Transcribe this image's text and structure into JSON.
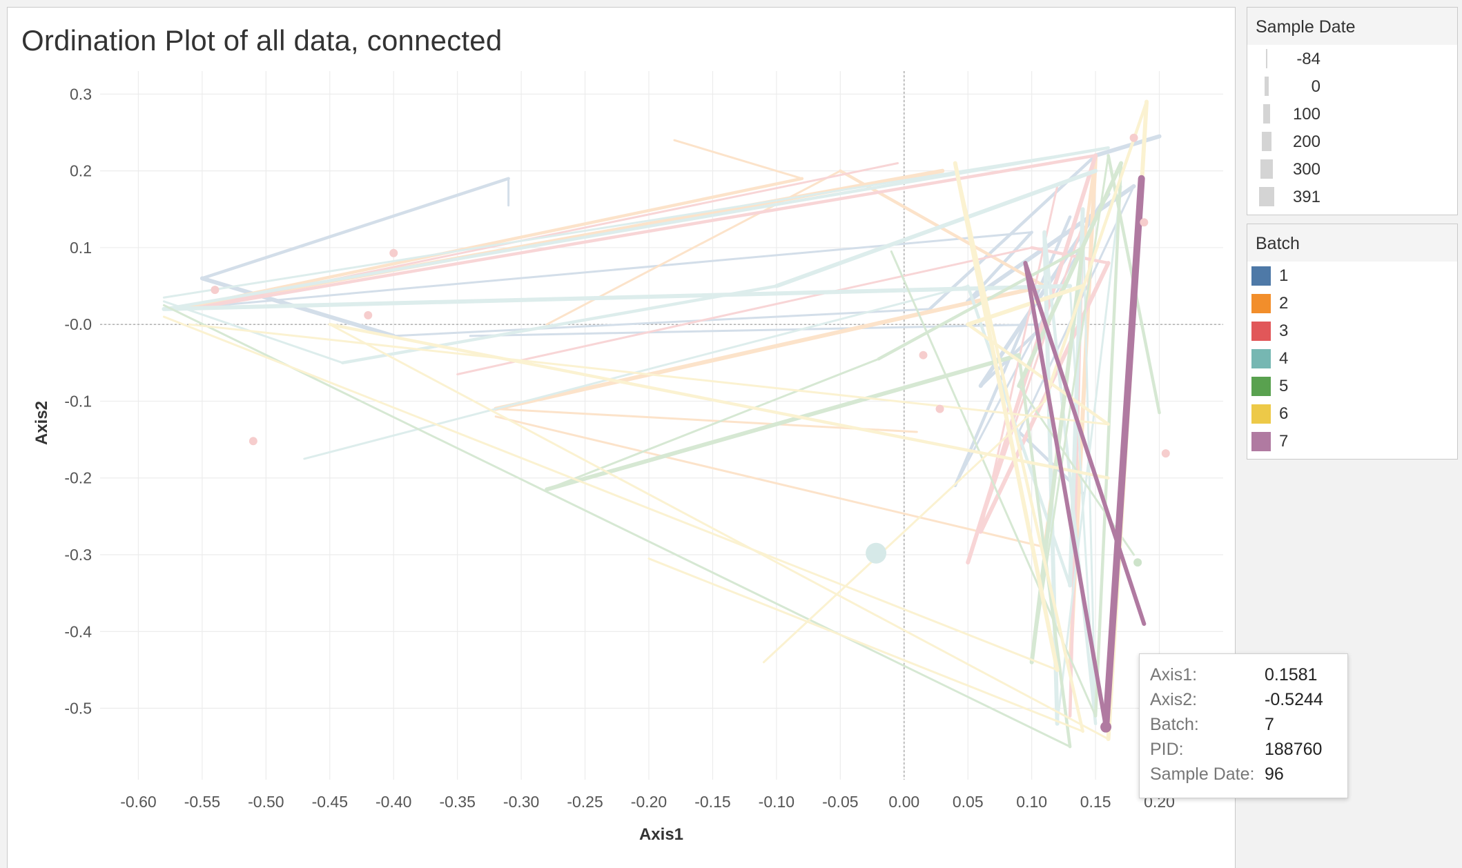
{
  "chart_data": {
    "type": "line",
    "title": "Ordination Plot of all data, connected",
    "xlabel": "Axis1",
    "ylabel": "Axis2",
    "xlim": [
      -0.63,
      0.25
    ],
    "ylim": [
      -0.593,
      0.33
    ],
    "x_ticks": [
      "-0.60",
      "-0.55",
      "-0.50",
      "-0.45",
      "-0.40",
      "-0.35",
      "-0.30",
      "-0.25",
      "-0.20",
      "-0.15",
      "-0.10",
      "-0.05",
      "0.00",
      "0.05",
      "0.10",
      "0.15",
      "0.20"
    ],
    "y_ticks": [
      "0.3",
      "0.2",
      "0.1",
      "-0.0",
      "-0.1",
      "-0.2",
      "-0.3",
      "-0.4",
      "-0.5"
    ],
    "grid": true,
    "reference_lines": {
      "x": 0,
      "y": 0
    },
    "legend": {
      "size_title": "Sample Date",
      "size_items": [
        "-84",
        "0",
        "100",
        "200",
        "300",
        "391"
      ],
      "color_title": "Batch",
      "color_items": [
        {
          "label": "1",
          "color": "#4e79a7"
        },
        {
          "label": "2",
          "color": "#f28e2b"
        },
        {
          "label": "3",
          "color": "#e15759"
        },
        {
          "label": "4",
          "color": "#76b7b2"
        },
        {
          "label": "5",
          "color": "#59a14f"
        },
        {
          "label": "6",
          "color": "#edc948"
        },
        {
          "label": "7",
          "color": "#b07aa1"
        }
      ],
      "placement": "right"
    },
    "series": [
      {
        "name": "1",
        "color": "#4e79a7",
        "faded": true,
        "points": [
          [
            -0.31,
            0.155
          ],
          [
            -0.31,
            0.19
          ],
          [
            -0.55,
            0.06
          ],
          [
            -0.4,
            -0.015
          ],
          [
            0.02,
            0.02
          ],
          [
            0.15,
            0.22
          ],
          [
            0.2,
            0.245
          ]
        ]
      },
      {
        "name": "1",
        "color": "#4e79a7",
        "faded": true,
        "points": [
          [
            -0.34,
            -0.015
          ],
          [
            0.11,
            0.0
          ],
          [
            0.06,
            -0.08
          ],
          [
            0.16,
            0.17
          ],
          [
            0.04,
            -0.21
          ],
          [
            0.13,
            0.14
          ]
        ]
      },
      {
        "name": "1",
        "color": "#4e79a7",
        "faded": true,
        "points": [
          [
            -0.57,
            0.02
          ],
          [
            0.1,
            0.12
          ],
          [
            0.05,
            0.03
          ],
          [
            0.18,
            0.18
          ],
          [
            0.09,
            -0.14
          ],
          [
            0.14,
            -0.22
          ]
        ]
      },
      {
        "name": "2",
        "color": "#f28e2b",
        "faded": true,
        "points": [
          [
            -0.18,
            0.24
          ],
          [
            -0.08,
            0.19
          ],
          [
            -0.57,
            0.02
          ],
          [
            0.03,
            0.2
          ]
        ]
      },
      {
        "name": "2",
        "color": "#f28e2b",
        "faded": true,
        "points": [
          [
            -0.28,
            0.0
          ],
          [
            -0.05,
            0.2
          ],
          [
            0.11,
            0.05
          ],
          [
            -0.32,
            -0.11
          ],
          [
            0.01,
            -0.14
          ]
        ]
      },
      {
        "name": "2",
        "color": "#f28e2b",
        "faded": true,
        "points": [
          [
            -0.32,
            -0.12
          ],
          [
            0.11,
            -0.29
          ],
          [
            0.15,
            0.22
          ],
          [
            0.13,
            -0.45
          ]
        ]
      },
      {
        "name": "3",
        "color": "#e15759",
        "faded": true,
        "points": [
          [
            -0.005,
            0.21
          ],
          [
            -0.56,
            0.02
          ],
          [
            0.15,
            0.22
          ],
          [
            0.05,
            -0.31
          ],
          [
            0.14,
            0.13
          ],
          [
            0.13,
            -0.51
          ]
        ]
      },
      {
        "name": "3",
        "color": "#e15759",
        "faded": true,
        "points": [
          [
            -0.35,
            -0.065
          ],
          [
            0.1,
            0.1
          ],
          [
            0.16,
            0.08
          ],
          [
            0.06,
            -0.27
          ],
          [
            0.12,
            0.18
          ]
        ]
      },
      {
        "name": "4",
        "color": "#76b7b2",
        "faded": true,
        "points": [
          [
            -0.58,
            0.035
          ],
          [
            0.16,
            0.23
          ],
          [
            -0.58,
            0.02
          ],
          [
            0.13,
            0.05
          ],
          [
            0.15,
            -0.52
          ],
          [
            0.11,
            0.12
          ],
          [
            0.12,
            -0.52
          ],
          [
            0.17,
            0.18
          ]
        ]
      },
      {
        "name": "4",
        "color": "#76b7b2",
        "faded": true,
        "points": [
          [
            -0.47,
            -0.175
          ],
          [
            0.05,
            0.05
          ],
          [
            0.13,
            -0.34
          ],
          [
            0.14,
            0.15
          ],
          [
            0.15,
            -0.52
          ]
        ]
      },
      {
        "name": "4",
        "color": "#76b7b2",
        "faded": true,
        "points": [
          [
            -0.58,
            0.03
          ],
          [
            -0.44,
            -0.05
          ],
          [
            -0.1,
            0.05
          ],
          [
            0.15,
            0.2
          ]
        ]
      },
      {
        "name": "5",
        "color": "#59a14f",
        "faded": true,
        "points": [
          [
            -0.58,
            0.025
          ],
          [
            0.13,
            -0.55
          ],
          [
            0.09,
            -0.04
          ],
          [
            -0.28,
            -0.215
          ],
          [
            -0.02,
            -0.045
          ],
          [
            0.14,
            0.1
          ],
          [
            0.1,
            -0.44
          ],
          [
            0.16,
            0.22
          ],
          [
            0.2,
            -0.115
          ]
        ]
      },
      {
        "name": "5",
        "color": "#59a14f",
        "faded": true,
        "points": [
          [
            -0.01,
            0.095
          ],
          [
            0.15,
            -0.51
          ],
          [
            0.17,
            0.21
          ],
          [
            0.09,
            -0.08
          ],
          [
            0.18,
            -0.3
          ]
        ]
      },
      {
        "name": "6",
        "color": "#edc948",
        "faded": true,
        "points": [
          [
            -0.2,
            -0.305
          ],
          [
            0.14,
            -0.53
          ],
          [
            0.04,
            0.21
          ],
          [
            0.12,
            -0.45
          ],
          [
            -0.58,
            0.01
          ]
        ]
      },
      {
        "name": "6",
        "color": "#edc948",
        "faded": true,
        "points": [
          [
            -0.11,
            -0.44
          ],
          [
            0.11,
            -0.1
          ],
          [
            0.19,
            0.29
          ],
          [
            0.16,
            -0.54
          ],
          [
            -0.45,
            0.0
          ],
          [
            0.16,
            -0.2
          ]
        ]
      },
      {
        "name": "6",
        "color": "#edc948",
        "faded": true,
        "points": [
          [
            -0.56,
            0.0
          ],
          [
            0.16,
            -0.13
          ],
          [
            0.05,
            0.0
          ],
          [
            0.14,
            0.05
          ]
        ]
      },
      {
        "name": "7",
        "color": "#b07aa1",
        "faded": false,
        "points": [
          [
            0.095,
            0.08
          ],
          [
            0.1581,
            -0.5244
          ],
          [
            0.186,
            0.19
          ]
        ]
      },
      {
        "name": "7",
        "color": "#b07aa1",
        "faded": false,
        "points": [
          [
            0.095,
            0.08
          ],
          [
            0.188,
            -0.39
          ]
        ]
      }
    ],
    "points": [
      {
        "x": -0.51,
        "y": -0.152,
        "color": "#e15759"
      },
      {
        "x": -0.54,
        "y": 0.045,
        "color": "#e15759"
      },
      {
        "x": -0.42,
        "y": 0.012,
        "color": "#e15759"
      },
      {
        "x": -0.4,
        "y": 0.093,
        "color": "#e15759"
      },
      {
        "x": 0.015,
        "y": -0.04,
        "color": "#e15759"
      },
      {
        "x": 0.028,
        "y": -0.11,
        "color": "#e15759"
      },
      {
        "x": 0.205,
        "y": -0.168,
        "color": "#e15759"
      },
      {
        "x": 0.18,
        "y": 0.243,
        "color": "#e15759"
      },
      {
        "x": 0.188,
        "y": 0.133,
        "color": "#e15759"
      },
      {
        "x": 0.183,
        "y": -0.31,
        "color": "#59a14f"
      },
      {
        "x": -0.022,
        "y": -0.298,
        "color": "#76b7b2",
        "large": true
      },
      {
        "x": 0.1581,
        "y": -0.5244,
        "color": "#b07aa1",
        "highlight": true
      }
    ]
  },
  "tooltip": {
    "rows": [
      {
        "key": "Axis1:",
        "value": "0.1581"
      },
      {
        "key": "Axis2:",
        "value": "-0.5244"
      },
      {
        "key": "Batch:",
        "value": "7"
      },
      {
        "key": "PID:",
        "value": "188760"
      },
      {
        "key": "Sample Date:",
        "value": "96"
      }
    ]
  }
}
